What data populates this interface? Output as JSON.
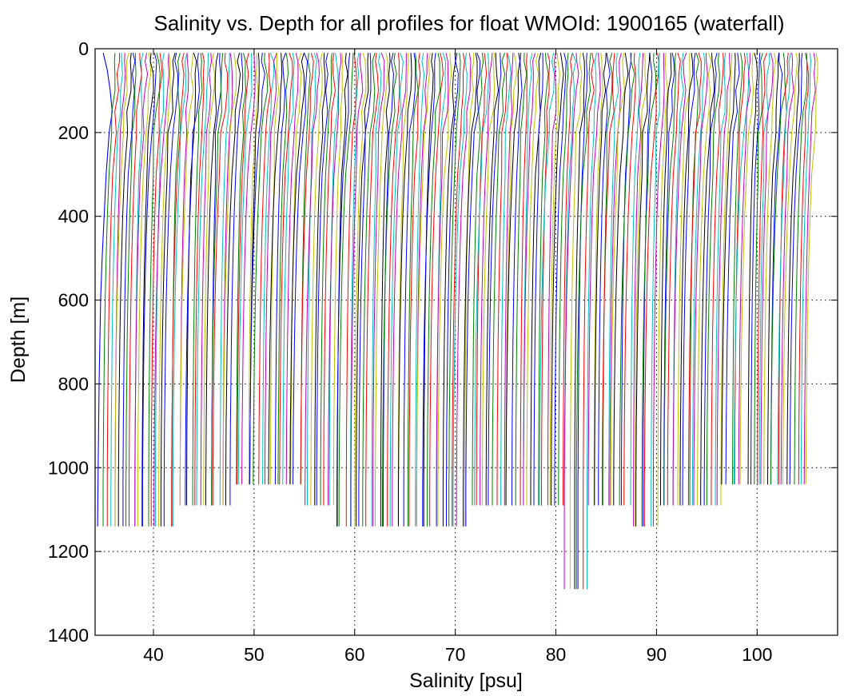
{
  "chart_data": {
    "type": "line",
    "title": "Salinity vs. Depth for all profiles for float WMOId: 1900165 (waterfall)",
    "xlabel": "Salinity [psu]",
    "ylabel": "Depth [m]",
    "xlim": [
      34.2,
      108
    ],
    "ylim": [
      0,
      1400
    ],
    "y_reversed": true,
    "x_ticks": [
      40,
      50,
      60,
      70,
      80,
      90,
      100
    ],
    "y_ticks": [
      0,
      200,
      400,
      600,
      800,
      1000,
      1200,
      1400
    ],
    "grid": true,
    "series_colors": [
      "#0000ff",
      "#008000",
      "#ff0000",
      "#00bfbf",
      "#bf00bf",
      "#bfbf00",
      "#000000"
    ],
    "profile_template": {
      "depth": [
        10,
        30,
        60,
        100,
        150,
        200,
        300,
        400,
        500,
        600,
        700,
        800,
        900,
        1000,
        1040
      ],
      "salinity_anomaly": [
        0.0,
        0.01,
        0.04,
        0.0,
        -0.14,
        -0.3,
        -0.48,
        -0.62,
        -0.72,
        -0.8,
        -0.86,
        -0.9,
        -0.94,
        -0.96,
        -0.97
      ]
    },
    "waterfall": {
      "profile_count": 230,
      "first_offset": 35.85,
      "last_offset": 106.0,
      "first_profile": {
        "depth": [
          10,
          50,
          100,
          150,
          200,
          300,
          400,
          500,
          600,
          800,
          1000,
          1140
        ],
        "salinity": [
          35.0,
          35.4,
          35.7,
          35.9,
          35.6,
          35.3,
          35.1,
          34.9,
          34.75,
          34.6,
          34.5,
          34.45
        ]
      },
      "bottom_depth_groups": [
        {
          "from": 35.0,
          "to": 43.5,
          "depth": 1140
        },
        {
          "from": 43.5,
          "to": 48.8,
          "depth": 1090
        },
        {
          "from": 48.8,
          "to": 56.0,
          "depth": 1040
        },
        {
          "from": 56.0,
          "to": 59.0,
          "depth": 1090
        },
        {
          "from": 59.0,
          "to": 72.5,
          "depth": 1140
        },
        {
          "from": 72.5,
          "to": 82.0,
          "depth": 1090
        },
        {
          "from": 82.0,
          "to": 84.0,
          "depth": 1290
        },
        {
          "from": 84.0,
          "to": 88.5,
          "depth": 1090
        },
        {
          "from": 88.5,
          "to": 91.0,
          "depth": 1140
        },
        {
          "from": 91.0,
          "to": 97.5,
          "depth": 1090
        },
        {
          "from": 97.5,
          "to": 106.0,
          "depth": 1040
        }
      ]
    }
  }
}
